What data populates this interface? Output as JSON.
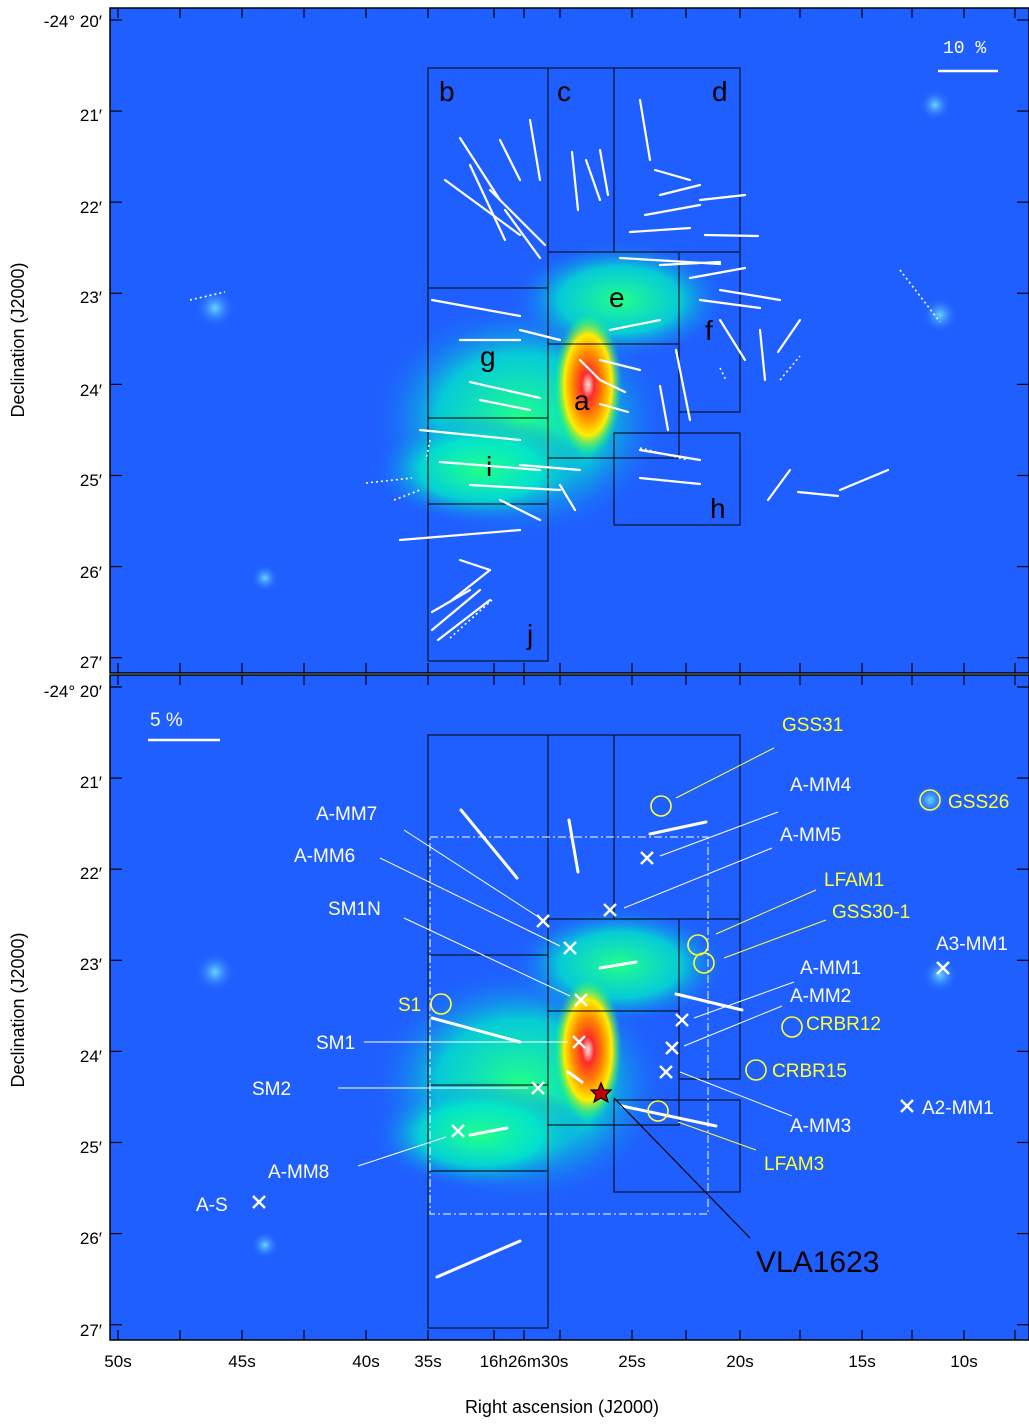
{
  "colors": {
    "background": "#1f5fff",
    "vector": "#ffffff",
    "source_white": "#ffffff",
    "source_yellow": "#ffff33",
    "box": "#000000"
  },
  "top_panel": {
    "scale_label": "10 %",
    "regions": [
      "a",
      "b",
      "c",
      "d",
      "e",
      "f",
      "g",
      "h",
      "i",
      "j"
    ]
  },
  "bottom_panel": {
    "scale_label": "5 %",
    "sources_white": [
      "A-MM7",
      "A-MM6",
      "SM1N",
      "SM1",
      "SM2",
      "A-MM8",
      "A-S",
      "A-MM4",
      "A-MM5",
      "A-MM1",
      "A-MM2",
      "A-MM3",
      "A3-MM1",
      "A2-MM1"
    ],
    "sources_yellow": [
      "GSS31",
      "GSS26",
      "LFAM1",
      "GSS30-1",
      "S1",
      "CRBR12",
      "CRBR15",
      "LFAM3"
    ],
    "protostar": "VLA1623"
  },
  "axes": {
    "y_title": "Declination (J2000)",
    "x_title": "Right ascension (J2000)",
    "y_top_first": "-24° 20′",
    "y_bottom_first": "-24° 20′",
    "y_ticks": [
      "21′",
      "22′",
      "23′",
      "24′",
      "25′",
      "26′",
      "27′"
    ],
    "x_ticks": [
      "50s",
      "45s",
      "40s",
      "35s",
      "16h26m30s",
      "25s",
      "20s",
      "15s",
      "10s"
    ]
  }
}
